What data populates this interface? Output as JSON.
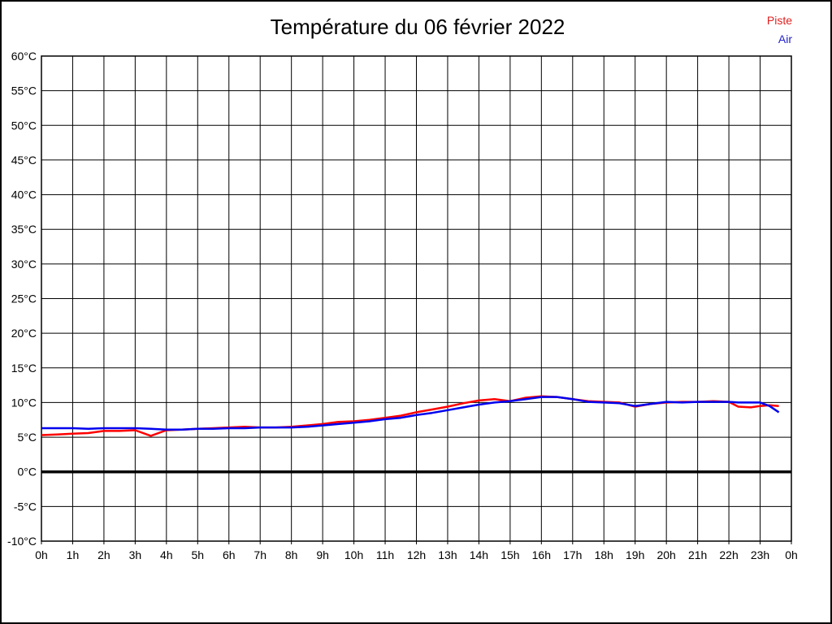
{
  "title": "Température du 06 février 2022",
  "legend": {
    "piste_label": "Piste",
    "air_label": "Air"
  },
  "colors": {
    "piste_line": "#ff0000",
    "air_line": "#0000ee",
    "piste_legend_text": "#e02020",
    "air_legend_text": "#2020cc",
    "grid": "#000000",
    "frame": "#000000",
    "zero_line": "#000000",
    "background": "#ffffff"
  },
  "chart_data": {
    "type": "line",
    "title": "Température du 06 février 2022",
    "xlabel": "",
    "ylabel": "",
    "xlim": [
      0,
      24
    ],
    "ylim": [
      -10,
      60
    ],
    "grid": true,
    "legend_position": "top-right",
    "x_tick_hours": [
      0,
      1,
      2,
      3,
      4,
      5,
      6,
      7,
      8,
      9,
      10,
      11,
      12,
      13,
      14,
      15,
      16,
      17,
      18,
      19,
      20,
      21,
      22,
      23,
      24
    ],
    "x_tick_labels": [
      "0h",
      "1h",
      "2h",
      "3h",
      "4h",
      "5h",
      "6h",
      "7h",
      "8h",
      "9h",
      "10h",
      "11h",
      "12h",
      "13h",
      "14h",
      "15h",
      "16h",
      "17h",
      "18h",
      "19h",
      "20h",
      "21h",
      "22h",
      "23h",
      "0h"
    ],
    "y_tick_values": [
      60,
      55,
      50,
      45,
      40,
      35,
      30,
      25,
      20,
      15,
      10,
      5,
      0,
      -5,
      -10
    ],
    "y_tick_labels": [
      "60°C",
      "55°C",
      "50°C",
      "45°C",
      "40°C",
      "35°C",
      "30°C",
      "25°C",
      "20°C",
      "15°C",
      "10°C",
      "5°C",
      "0°C",
      "-5°C",
      "-10°C"
    ],
    "zero_line_value": 0,
    "x": [
      0,
      0.5,
      1,
      1.5,
      2,
      2.5,
      3,
      3.5,
      4,
      4.5,
      5,
      5.5,
      6,
      6.5,
      7,
      7.5,
      8,
      8.5,
      9,
      9.5,
      10,
      10.5,
      11,
      11.5,
      12,
      12.5,
      13,
      13.5,
      14,
      14.5,
      15,
      15.5,
      16,
      16.5,
      17,
      17.5,
      18,
      18.5,
      19,
      19.5,
      20,
      20.5,
      21,
      21.5,
      22,
      22.3,
      22.7,
      23,
      23.3,
      23.6
    ],
    "series": [
      {
        "name": "Piste",
        "color": "#ff0000",
        "values": [
          5.3,
          5.4,
          5.5,
          5.6,
          5.9,
          5.9,
          6.0,
          5.2,
          6.0,
          6.1,
          6.2,
          6.3,
          6.4,
          6.5,
          6.4,
          6.4,
          6.5,
          6.7,
          6.9,
          7.2,
          7.3,
          7.5,
          7.8,
          8.1,
          8.6,
          9.0,
          9.4,
          9.9,
          10.3,
          10.5,
          10.2,
          10.7,
          10.9,
          10.8,
          10.5,
          10.2,
          10.1,
          10.0,
          9.4,
          9.8,
          10.0,
          10.1,
          10.1,
          10.2,
          10.1,
          9.4,
          9.3,
          9.5,
          9.6,
          9.5
        ]
      },
      {
        "name": "Air",
        "color": "#0000ee",
        "values": [
          6.3,
          6.3,
          6.3,
          6.2,
          6.3,
          6.3,
          6.3,
          6.2,
          6.1,
          6.1,
          6.2,
          6.2,
          6.3,
          6.3,
          6.4,
          6.4,
          6.4,
          6.5,
          6.7,
          6.9,
          7.1,
          7.3,
          7.6,
          7.8,
          8.2,
          8.5,
          8.9,
          9.3,
          9.7,
          10.0,
          10.2,
          10.5,
          10.8,
          10.8,
          10.5,
          10.1,
          10.0,
          9.9,
          9.5,
          9.8,
          10.1,
          10.0,
          10.1,
          10.1,
          10.1,
          10.0,
          10.0,
          10.0,
          9.5,
          8.6
        ]
      }
    ]
  }
}
